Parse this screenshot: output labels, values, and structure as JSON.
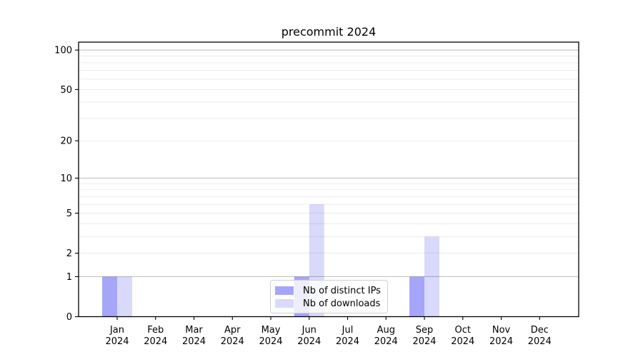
{
  "title": "precommit 2024",
  "colors": {
    "distinct_ips_bar": "rgba(0,0,238,0.35)",
    "downloads_bar": "rgba(0,0,238,0.15)",
    "grid_major": "#bdbdbd",
    "grid_minor": "#eaeaea",
    "axis": "#000000",
    "text": "#000000",
    "legend_border": "#d0d0d0"
  },
  "legend": {
    "position": "lower center",
    "items": [
      {
        "label": "Nb of distinct IPs"
      },
      {
        "label": "Nb of downloads"
      }
    ]
  },
  "chart_data": {
    "type": "bar",
    "title": "precommit 2024",
    "categories": [
      "Jan 2024",
      "Feb 2024",
      "Mar 2024",
      "Apr 2024",
      "May 2024",
      "Jun 2024",
      "Jul 2024",
      "Aug 2024",
      "Sep 2024",
      "Oct 2024",
      "Nov 2024",
      "Dec 2024"
    ],
    "months": [
      "Jan",
      "Feb",
      "Mar",
      "Apr",
      "May",
      "Jun",
      "Jul",
      "Aug",
      "Sep",
      "Oct",
      "Nov",
      "Dec"
    ],
    "year_label": "2024",
    "series": [
      {
        "name": "Nb of distinct IPs",
        "values": [
          1,
          0,
          0,
          0,
          0,
          1,
          0,
          0,
          1,
          0,
          0,
          0
        ],
        "color": "rgba(0,0,238,0.35)"
      },
      {
        "name": "Nb of downloads",
        "values": [
          1,
          0,
          0,
          0,
          0,
          6,
          0,
          0,
          3,
          0,
          0,
          0
        ],
        "color": "rgba(0,0,238,0.15)"
      }
    ],
    "xlabel": "",
    "ylabel": "",
    "y_ticks": [
      0,
      1,
      2,
      5,
      10,
      20,
      50,
      100
    ],
    "y_minor_gridlines": [
      2,
      3,
      4,
      5,
      6,
      7,
      8,
      9,
      20,
      30,
      40,
      50,
      60,
      70,
      80,
      90
    ],
    "y_major_gridlines": [
      1,
      10,
      100
    ],
    "y_scale": "log10(1+x)",
    "ylim": [
      0,
      115
    ],
    "grid": "horizontal"
  }
}
